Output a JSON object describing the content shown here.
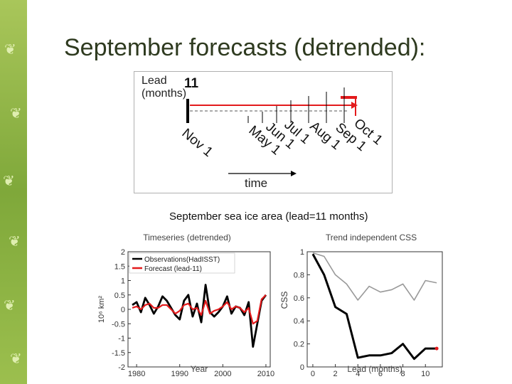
{
  "slide": {
    "title": "September forecasts (detrended):"
  },
  "schematic": {
    "lead_label": "Lead",
    "lead_units": "(months)",
    "lead_value": "11",
    "months": [
      "Nov 1",
      "May 1",
      "Jun 1",
      "Jul 1",
      "Aug 1",
      "Sep 1",
      "Oct 1"
    ],
    "time_label": "time",
    "colors": {
      "forecast": "#e31a1c",
      "observation": "#000000"
    }
  },
  "figure_title": "September sea ice area (lead=11 months)",
  "chart_data": [
    {
      "type": "line",
      "title": "Timeseries (detrended)",
      "xlabel": "Year",
      "ylabel": "10⁶ km²",
      "xlim": [
        1978,
        2011
      ],
      "ylim": [
        -2,
        2
      ],
      "xticks": [
        1980,
        1990,
        2000,
        2010
      ],
      "yticks": [
        -2,
        -1.5,
        -1,
        -0.5,
        0,
        0.5,
        1,
        1.5,
        2
      ],
      "x": [
        1979,
        1980,
        1981,
        1982,
        1983,
        1984,
        1985,
        1986,
        1987,
        1988,
        1989,
        1990,
        1991,
        1992,
        1993,
        1994,
        1995,
        1996,
        1997,
        1998,
        1999,
        2000,
        2001,
        2002,
        2003,
        2004,
        2005,
        2006,
        2007,
        2008,
        2009,
        2010
      ],
      "legend_position": "top-left",
      "series": [
        {
          "name": "Observations(HadISST)",
          "color": "#000000",
          "values": [
            0.15,
            0.25,
            -0.1,
            0.4,
            0.15,
            -0.15,
            0.1,
            0.45,
            0.3,
            0.05,
            -0.2,
            -0.35,
            0.3,
            0.5,
            -0.25,
            0.2,
            -0.45,
            0.85,
            -0.1,
            -0.25,
            -0.1,
            0.1,
            0.45,
            -0.15,
            0.1,
            0.05,
            -0.2,
            0.25,
            -1.3,
            -0.5,
            0.3,
            0.5
          ]
        },
        {
          "name": "Forecast (lead-11)",
          "color": "#e31a1c",
          "values": [
            0.05,
            0.1,
            0.0,
            0.15,
            0.2,
            0.05,
            0.05,
            0.15,
            0.15,
            0.0,
            -0.15,
            -0.05,
            0.15,
            0.2,
            0.0,
            0.05,
            -0.2,
            0.3,
            -0.15,
            -0.05,
            0.0,
            0.1,
            0.25,
            0.0,
            0.1,
            0.05,
            -0.1,
            0.05,
            -0.5,
            -0.4,
            0.35,
            0.5
          ]
        }
      ]
    },
    {
      "type": "line",
      "title": "Trend independent CSS",
      "xlabel": "Lead (months)",
      "ylabel": "CSS",
      "xlim": [
        -0.5,
        11.5
      ],
      "ylim": [
        0,
        1
      ],
      "xticks": [
        0,
        2,
        4,
        6,
        8,
        10
      ],
      "yticks": [
        0,
        0.2,
        0.4,
        0.6,
        0.8,
        1
      ],
      "x": [
        0,
        1,
        2,
        3,
        4,
        5,
        6,
        7,
        8,
        9,
        10,
        11
      ],
      "series": [
        {
          "color": "#000000",
          "values": [
            0.98,
            0.8,
            0.52,
            0.46,
            0.08,
            0.1,
            0.1,
            0.12,
            0.2,
            0.07,
            0.16,
            0.16
          ]
        },
        {
          "color": "#999999",
          "values": [
            0.99,
            0.96,
            0.8,
            0.72,
            0.58,
            0.7,
            0.65,
            0.67,
            0.72,
            0.58,
            0.75,
            0.73
          ]
        }
      ]
    }
  ]
}
